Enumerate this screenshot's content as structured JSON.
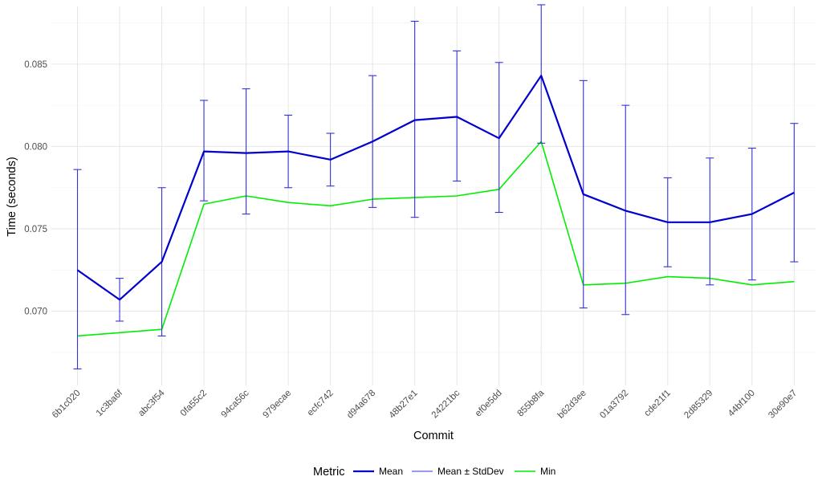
{
  "chart_data": {
    "type": "line",
    "xlabel": "Commit",
    "ylabel": "Time (seconds)",
    "categories": [
      "6b1c020",
      "1c3ba6f",
      "abc3f54",
      "0fa55c2",
      "94ca56c",
      "979ecae",
      "ecfc742",
      "d94a678",
      "48b27e1",
      "24221bc",
      "ef0e5dd",
      "855b8fa",
      "b62d3ee",
      "01a3792",
      "cde21f1",
      "2d85329",
      "44bf100",
      "30e90e7"
    ],
    "y_ticks": [
      0.07,
      0.075,
      0.08,
      0.085
    ],
    "y_tick_labels": [
      "0.070",
      "0.075",
      "0.080",
      "0.085"
    ],
    "ylim": [
      0.0655,
      0.0885
    ],
    "grid": true,
    "legend": {
      "title": "Metric",
      "position": "bottom",
      "entries": [
        {
          "label": "Mean",
          "color": "#0000cc"
        },
        {
          "label": "Mean ± StdDev",
          "color": "#3333dd"
        },
        {
          "label": "Min",
          "color": "#00ee00"
        }
      ]
    },
    "series": [
      {
        "name": "Mean",
        "color": "#0000cc",
        "values": [
          0.0725,
          0.0707,
          0.073,
          0.0797,
          0.0796,
          0.0797,
          0.0792,
          0.0803,
          0.0816,
          0.0818,
          0.0805,
          0.0843,
          0.0771,
          0.0761,
          0.0754,
          0.0754,
          0.0759,
          0.0772
        ]
      },
      {
        "name": "Min",
        "color": "#00ee00",
        "values": [
          0.0685,
          0.0687,
          0.0689,
          0.0765,
          0.077,
          0.0766,
          0.0764,
          0.0768,
          0.0769,
          0.077,
          0.0774,
          0.0803,
          0.0716,
          0.0717,
          0.0721,
          0.072,
          0.0716,
          0.0718
        ]
      }
    ],
    "error_bars": {
      "name": "Mean ± StdDev",
      "color": "#3333dd",
      "low": [
        0.0665,
        0.0694,
        0.0685,
        0.0767,
        0.0759,
        0.0775,
        0.0776,
        0.0763,
        0.0757,
        0.0779,
        0.076,
        0.0802,
        0.0702,
        0.0698,
        0.0727,
        0.0716,
        0.0719,
        0.073
      ],
      "high": [
        0.0786,
        0.072,
        0.0775,
        0.0828,
        0.0835,
        0.0819,
        0.0808,
        0.0843,
        0.0876,
        0.0858,
        0.0851,
        0.0886,
        0.084,
        0.0825,
        0.0781,
        0.0793,
        0.0799,
        0.0814
      ]
    }
  }
}
